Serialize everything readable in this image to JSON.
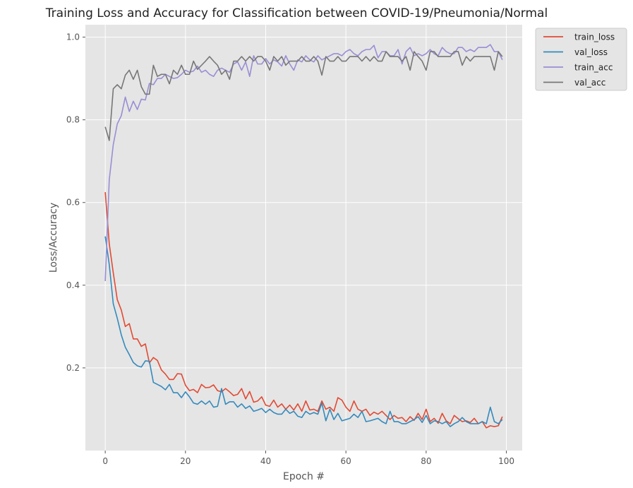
{
  "chart_data": {
    "type": "line",
    "title": "Training Loss and Accuracy for Classification between COVID-19/Pneumonia/Normal",
    "xlabel": "Epoch #",
    "ylabel": "Loss/Accuracy",
    "xlim": [
      -4.95,
      103.95
    ],
    "ylim": [
      0.0,
      1.03
    ],
    "x_ticks": [
      0,
      20,
      40,
      60,
      80,
      100
    ],
    "y_ticks": [
      0.2,
      0.4,
      0.6,
      0.8,
      1.0
    ],
    "x_tick_labels": [
      "0",
      "20",
      "40",
      "60",
      "80",
      "100"
    ],
    "y_tick_labels": [
      "0.2",
      "0.4",
      "0.6",
      "0.8",
      "1.0"
    ],
    "grid": true,
    "legend_position": "outside-top-right",
    "background": "#e5e5e5",
    "x": [
      0,
      1,
      2,
      3,
      4,
      5,
      6,
      7,
      8,
      9,
      10,
      11,
      12,
      13,
      14,
      15,
      16,
      17,
      18,
      19,
      20,
      21,
      22,
      23,
      24,
      25,
      26,
      27,
      28,
      29,
      30,
      31,
      32,
      33,
      34,
      35,
      36,
      37,
      38,
      39,
      40,
      41,
      42,
      43,
      44,
      45,
      46,
      47,
      48,
      49,
      50,
      51,
      52,
      53,
      54,
      55,
      56,
      57,
      58,
      59,
      60,
      61,
      62,
      63,
      64,
      65,
      66,
      67,
      68,
      69,
      70,
      71,
      72,
      73,
      74,
      75,
      76,
      77,
      78,
      79,
      80,
      81,
      82,
      83,
      84,
      85,
      86,
      87,
      88,
      89,
      90,
      91,
      92,
      93,
      94,
      95,
      96,
      97,
      98,
      99
    ],
    "series": [
      {
        "name": "train_loss",
        "color": "#e24a33",
        "values": [
          0.625,
          0.5,
          0.43,
          0.365,
          0.34,
          0.3,
          0.307,
          0.27,
          0.27,
          0.252,
          0.258,
          0.212,
          0.225,
          0.218,
          0.195,
          0.185,
          0.172,
          0.172,
          0.186,
          0.185,
          0.158,
          0.145,
          0.148,
          0.14,
          0.16,
          0.152,
          0.153,
          0.159,
          0.145,
          0.142,
          0.15,
          0.142,
          0.133,
          0.136,
          0.15,
          0.125,
          0.143,
          0.117,
          0.12,
          0.13,
          0.11,
          0.107,
          0.122,
          0.105,
          0.113,
          0.1,
          0.11,
          0.098,
          0.113,
          0.095,
          0.12,
          0.098,
          0.1,
          0.095,
          0.12,
          0.1,
          0.105,
          0.095,
          0.128,
          0.122,
          0.105,
          0.095,
          0.12,
          0.1,
          0.095,
          0.1,
          0.085,
          0.093,
          0.088,
          0.095,
          0.085,
          0.075,
          0.085,
          0.078,
          0.08,
          0.07,
          0.082,
          0.073,
          0.09,
          0.075,
          0.1,
          0.07,
          0.078,
          0.066,
          0.09,
          0.072,
          0.065,
          0.085,
          0.077,
          0.07,
          0.072,
          0.068,
          0.078,
          0.065,
          0.07,
          0.055,
          0.06,
          0.058,
          0.06,
          0.082
        ]
      },
      {
        "name": "val_loss",
        "color": "#348abd",
        "values": [
          0.518,
          0.45,
          0.355,
          0.32,
          0.28,
          0.25,
          0.232,
          0.213,
          0.205,
          0.202,
          0.217,
          0.216,
          0.165,
          0.16,
          0.155,
          0.147,
          0.16,
          0.14,
          0.14,
          0.128,
          0.142,
          0.13,
          0.115,
          0.112,
          0.12,
          0.112,
          0.12,
          0.105,
          0.107,
          0.15,
          0.112,
          0.118,
          0.118,
          0.105,
          0.113,
          0.102,
          0.108,
          0.095,
          0.098,
          0.102,
          0.092,
          0.1,
          0.092,
          0.088,
          0.088,
          0.1,
          0.09,
          0.095,
          0.083,
          0.08,
          0.095,
          0.088,
          0.092,
          0.088,
          0.115,
          0.072,
          0.1,
          0.075,
          0.09,
          0.072,
          0.075,
          0.078,
          0.088,
          0.08,
          0.095,
          0.07,
          0.072,
          0.075,
          0.078,
          0.07,
          0.065,
          0.095,
          0.07,
          0.07,
          0.065,
          0.065,
          0.07,
          0.075,
          0.082,
          0.068,
          0.085,
          0.065,
          0.072,
          0.07,
          0.065,
          0.07,
          0.058,
          0.065,
          0.07,
          0.08,
          0.07,
          0.065,
          0.065,
          0.065,
          0.07,
          0.065,
          0.105,
          0.07,
          0.065,
          0.075
        ]
      },
      {
        "name": "train_acc",
        "color": "#988ed5",
        "values": [
          0.41,
          0.655,
          0.74,
          0.79,
          0.81,
          0.855,
          0.82,
          0.845,
          0.825,
          0.85,
          0.848,
          0.888,
          0.885,
          0.9,
          0.9,
          0.91,
          0.905,
          0.9,
          0.902,
          0.91,
          0.92,
          0.915,
          0.918,
          0.93,
          0.915,
          0.92,
          0.91,
          0.905,
          0.92,
          0.925,
          0.92,
          0.915,
          0.935,
          0.94,
          0.92,
          0.94,
          0.905,
          0.955,
          0.935,
          0.935,
          0.948,
          0.935,
          0.945,
          0.94,
          0.93,
          0.955,
          0.935,
          0.92,
          0.945,
          0.94,
          0.955,
          0.945,
          0.94,
          0.955,
          0.945,
          0.95,
          0.955,
          0.96,
          0.96,
          0.955,
          0.965,
          0.97,
          0.96,
          0.955,
          0.965,
          0.97,
          0.97,
          0.98,
          0.95,
          0.965,
          0.965,
          0.955,
          0.955,
          0.97,
          0.935,
          0.965,
          0.975,
          0.955,
          0.96,
          0.955,
          0.96,
          0.97,
          0.96,
          0.955,
          0.975,
          0.965,
          0.96,
          0.96,
          0.975,
          0.975,
          0.965,
          0.97,
          0.965,
          0.975,
          0.975,
          0.975,
          0.982,
          0.965,
          0.965,
          0.945
        ]
      },
      {
        "name": "val_acc",
        "color": "#777777",
        "values": [
          0.783,
          0.75,
          0.875,
          0.885,
          0.875,
          0.908,
          0.92,
          0.898,
          0.92,
          0.88,
          0.862,
          0.862,
          0.932,
          0.905,
          0.91,
          0.91,
          0.887,
          0.92,
          0.91,
          0.932,
          0.91,
          0.91,
          0.942,
          0.922,
          0.932,
          0.942,
          0.953,
          0.942,
          0.932,
          0.91,
          0.92,
          0.898,
          0.942,
          0.942,
          0.953,
          0.942,
          0.953,
          0.942,
          0.953,
          0.953,
          0.942,
          0.92,
          0.953,
          0.942,
          0.953,
          0.932,
          0.942,
          0.942,
          0.942,
          0.953,
          0.942,
          0.942,
          0.953,
          0.942,
          0.908,
          0.953,
          0.942,
          0.942,
          0.953,
          0.942,
          0.942,
          0.953,
          0.953,
          0.953,
          0.942,
          0.953,
          0.942,
          0.953,
          0.942,
          0.942,
          0.965,
          0.953,
          0.953,
          0.953,
          0.942,
          0.953,
          0.92,
          0.965,
          0.953,
          0.942,
          0.92,
          0.965,
          0.965,
          0.953,
          0.953,
          0.953,
          0.953,
          0.965,
          0.965,
          0.932,
          0.953,
          0.942,
          0.953,
          0.953,
          0.953,
          0.953,
          0.953,
          0.92,
          0.965,
          0.953
        ]
      }
    ]
  }
}
